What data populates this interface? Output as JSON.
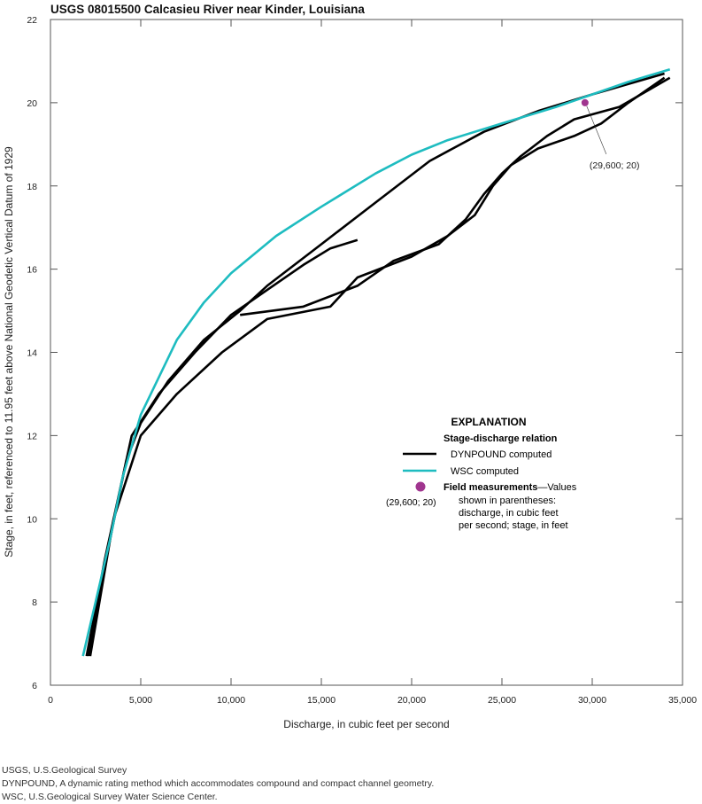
{
  "chart_data": {
    "type": "line",
    "title": "USGS 08015500 Calcasieu River near Kinder, Louisiana",
    "xlabel": "Discharge, in cubic feet per second",
    "ylabel": "Stage, in feet, referenced to 11.95 feet above National Geodetic Vertical Datum of 1929",
    "xlim": [
      0,
      35000
    ],
    "ylim": [
      6,
      22
    ],
    "xticks": [
      0,
      5000,
      10000,
      15000,
      20000,
      25000,
      30000,
      35000
    ],
    "xtick_labels": [
      "0",
      "5,000",
      "10,000",
      "15,000",
      "20,000",
      "25,000",
      "30,000",
      "35,000"
    ],
    "yticks": [
      6,
      8,
      10,
      12,
      14,
      16,
      18,
      20,
      22
    ],
    "ytick_labels": [
      "6",
      "8",
      "10",
      "12",
      "14",
      "16",
      "18",
      "20",
      "22"
    ],
    "grid": false,
    "legend_placement": "center-right",
    "series": [
      {
        "name": "WSC computed",
        "color": "#1ebcc0",
        "x": [
          1800,
          2500,
          3300,
          4000,
          5000,
          7000,
          8500,
          10000,
          12500,
          15000,
          18000,
          20000,
          22000,
          25000,
          28000,
          30000,
          32000,
          34300
        ],
        "y": [
          6.7,
          8.0,
          9.5,
          11.0,
          12.5,
          14.3,
          15.2,
          15.9,
          16.8,
          17.5,
          18.3,
          18.75,
          19.1,
          19.5,
          19.9,
          20.2,
          20.5,
          20.8
        ]
      },
      {
        "name": "DYNPOUND computed",
        "color": "#000000",
        "x": [
          2000,
          3000,
          4000,
          4500,
          6000,
          8000,
          10000,
          12000,
          14000,
          15500,
          17000
        ],
        "y": [
          6.7,
          9.0,
          11.0,
          12.0,
          13.0,
          14.0,
          14.9,
          15.5,
          16.1,
          16.5,
          16.7
        ]
      },
      {
        "name": "DYNPOUND computed",
        "color": "#000000",
        "x": [
          2100,
          3200,
          4200,
          5000,
          6500,
          8500,
          10500,
          12000,
          15000,
          18000,
          21000,
          24000,
          27000,
          30000,
          34000
        ],
        "y": [
          6.7,
          9.3,
          11.4,
          12.3,
          13.3,
          14.3,
          15.0,
          15.6,
          16.6,
          17.6,
          18.6,
          19.3,
          19.8,
          20.2,
          20.7
        ]
      },
      {
        "name": "DYNPOUND computed",
        "color": "#000000",
        "x": [
          2200,
          3500,
          5000,
          7000,
          9500,
          12000,
          15500,
          17000,
          20000,
          22000,
          23500,
          24500,
          25500,
          27000,
          29000,
          30500,
          32000,
          34000
        ],
        "y": [
          6.7,
          10.0,
          12.0,
          13.0,
          14.0,
          14.8,
          15.1,
          15.8,
          16.3,
          16.8,
          17.3,
          18.0,
          18.5,
          18.9,
          19.2,
          19.5,
          20.0,
          20.6
        ]
      },
      {
        "name": "DYNPOUND computed",
        "color": "#000000",
        "x": [
          10500,
          14000,
          17000,
          19000,
          21500,
          23000,
          24000,
          25000,
          26000,
          27500,
          29000,
          31500,
          34300
        ],
        "y": [
          14.9,
          15.1,
          15.6,
          16.2,
          16.6,
          17.2,
          17.8,
          18.3,
          18.7,
          19.2,
          19.6,
          19.9,
          20.6
        ]
      }
    ],
    "points": [
      {
        "name": "Field measurements",
        "x": 29600,
        "y": 20,
        "label": "(29,600; 20)",
        "color": "#a0358f"
      }
    ],
    "legend": {
      "heading": "EXPLANATION",
      "subheading": "Stage-discharge relation",
      "items": [
        "DYNPOUND computed",
        "WSC computed"
      ],
      "field_bold": "Field measurements",
      "field_text": [
        "—Values",
        "shown in parentheses:",
        "discharge, in cubic feet",
        "per second; stage, in feet"
      ],
      "field_example": "(29,600; 20)"
    }
  },
  "footnotes": [
    "USGS, U.S.Geological Survey",
    "DYNPOUND, A dynamic rating method which accommodates compound and compact channel geometry.",
    "WSC, U.S.Geological Survey Water Science Center."
  ]
}
